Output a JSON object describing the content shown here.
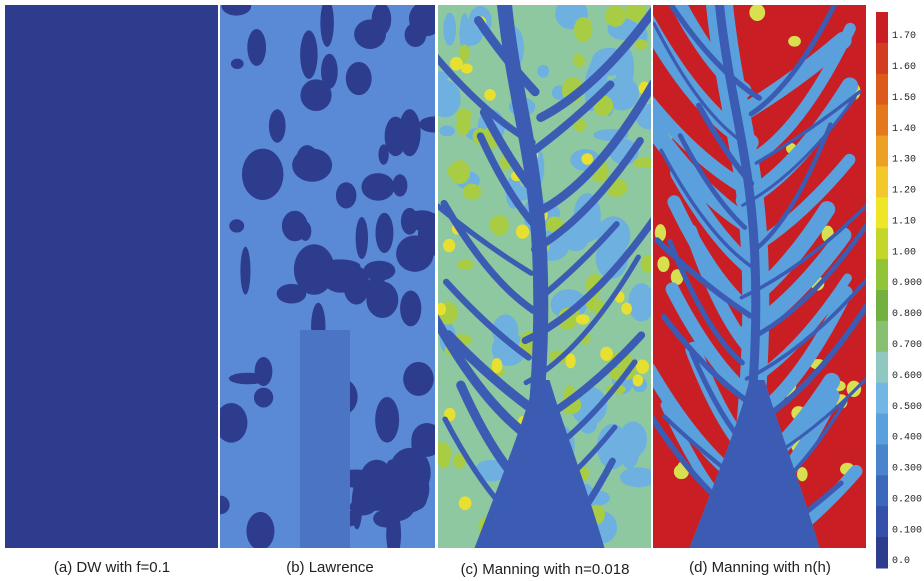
{
  "panels": [
    {
      "caption": "(a) DW with f=0.1"
    },
    {
      "caption": "(b) Lawrence"
    },
    {
      "caption": "(c) Manning with n=0.018"
    },
    {
      "caption": "(d) Manning with n(h)"
    }
  ],
  "colorbar": {
    "labels": [
      "1.70",
      "1.60",
      "1.50",
      "1.40",
      "1.30",
      "1.20",
      "1.10",
      "1.00",
      "0.900",
      "0.800",
      "0.700",
      "0.600",
      "0.500",
      "0.400",
      "0.300",
      "0.200",
      "0.100",
      "0.0"
    ],
    "colors": [
      "#c81e24",
      "#d23c20",
      "#dc5a1c",
      "#e4781c",
      "#eca024",
      "#f2c82a",
      "#eee626",
      "#c4d62a",
      "#92c43a",
      "#72b040",
      "#86c070",
      "#8ec8c0",
      "#72b6e4",
      "#5aa0dc",
      "#4a84cc",
      "#3c68bc",
      "#3450a8",
      "#2e3c8e"
    ]
  }
}
